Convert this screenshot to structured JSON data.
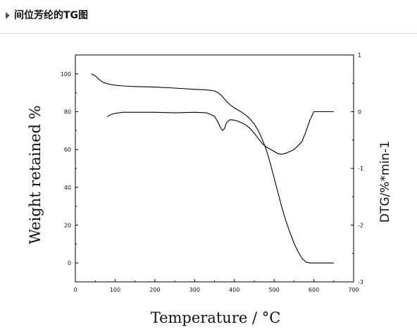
{
  "header": {
    "title": "间位芳纶的TG图",
    "arrow_icon": "triangle-right-icon"
  },
  "chart_data": {
    "type": "line",
    "xlabel": "Temperature / °C",
    "ylabel_left": "Weight retained %",
    "ylabel_right": "DTG/%*min-1",
    "xlim": [
      0,
      700
    ],
    "ylim_left": [
      -10,
      110
    ],
    "ylim_right": [
      -3,
      1
    ],
    "x_ticks": [
      "0",
      "100",
      "200",
      "300",
      "400",
      "500",
      "600",
      "700"
    ],
    "y_left_ticks": [
      "0",
      "20",
      "40",
      "60",
      "80",
      "100"
    ],
    "y_right_ticks": [
      "-3",
      "-2",
      "-1",
      "0",
      "1"
    ],
    "grid": false,
    "series": [
      {
        "axis": "left",
        "x": [
          40,
          50,
          60,
          70,
          80,
          90,
          100,
          120,
          150,
          200,
          250,
          300,
          330,
          350,
          360,
          370,
          380,
          390,
          400,
          410,
          420,
          430,
          440,
          450,
          460,
          470,
          480,
          490,
          500,
          510,
          520,
          530,
          540,
          550,
          560,
          570,
          580,
          590,
          600,
          620,
          650
        ],
        "values": [
          100,
          99,
          97,
          95.5,
          94.8,
          94.3,
          94,
          93.6,
          93.3,
          93,
          92.5,
          91.8,
          91.5,
          91,
          90,
          88,
          85.5,
          83.5,
          82,
          80.8,
          79.5,
          78,
          76,
          73.5,
          70,
          65.5,
          60,
          53,
          45,
          37,
          29,
          22,
          16,
          10.5,
          6,
          2.5,
          0.5,
          0,
          0,
          0,
          0
        ]
      },
      {
        "axis": "right",
        "x": [
          80,
          90,
          100,
          120,
          150,
          200,
          250,
          300,
          330,
          350,
          360,
          365,
          370,
          375,
          380,
          385,
          390,
          400,
          410,
          420,
          430,
          440,
          450,
          460,
          470,
          480,
          490,
          500,
          510,
          520,
          530,
          540,
          550,
          560,
          570,
          580,
          590,
          600,
          620,
          650
        ],
        "values": [
          -0.09,
          -0.05,
          -0.03,
          -0.01,
          -0.01,
          -0.01,
          -0.02,
          -0.01,
          -0.02,
          -0.08,
          -0.2,
          -0.28,
          -0.33,
          -0.3,
          -0.2,
          -0.16,
          -0.14,
          -0.15,
          -0.17,
          -0.2,
          -0.24,
          -0.3,
          -0.38,
          -0.47,
          -0.56,
          -0.62,
          -0.66,
          -0.7,
          -0.74,
          -0.75,
          -0.73,
          -0.7,
          -0.67,
          -0.6,
          -0.53,
          -0.35,
          -0.15,
          0,
          0,
          0
        ]
      }
    ]
  }
}
